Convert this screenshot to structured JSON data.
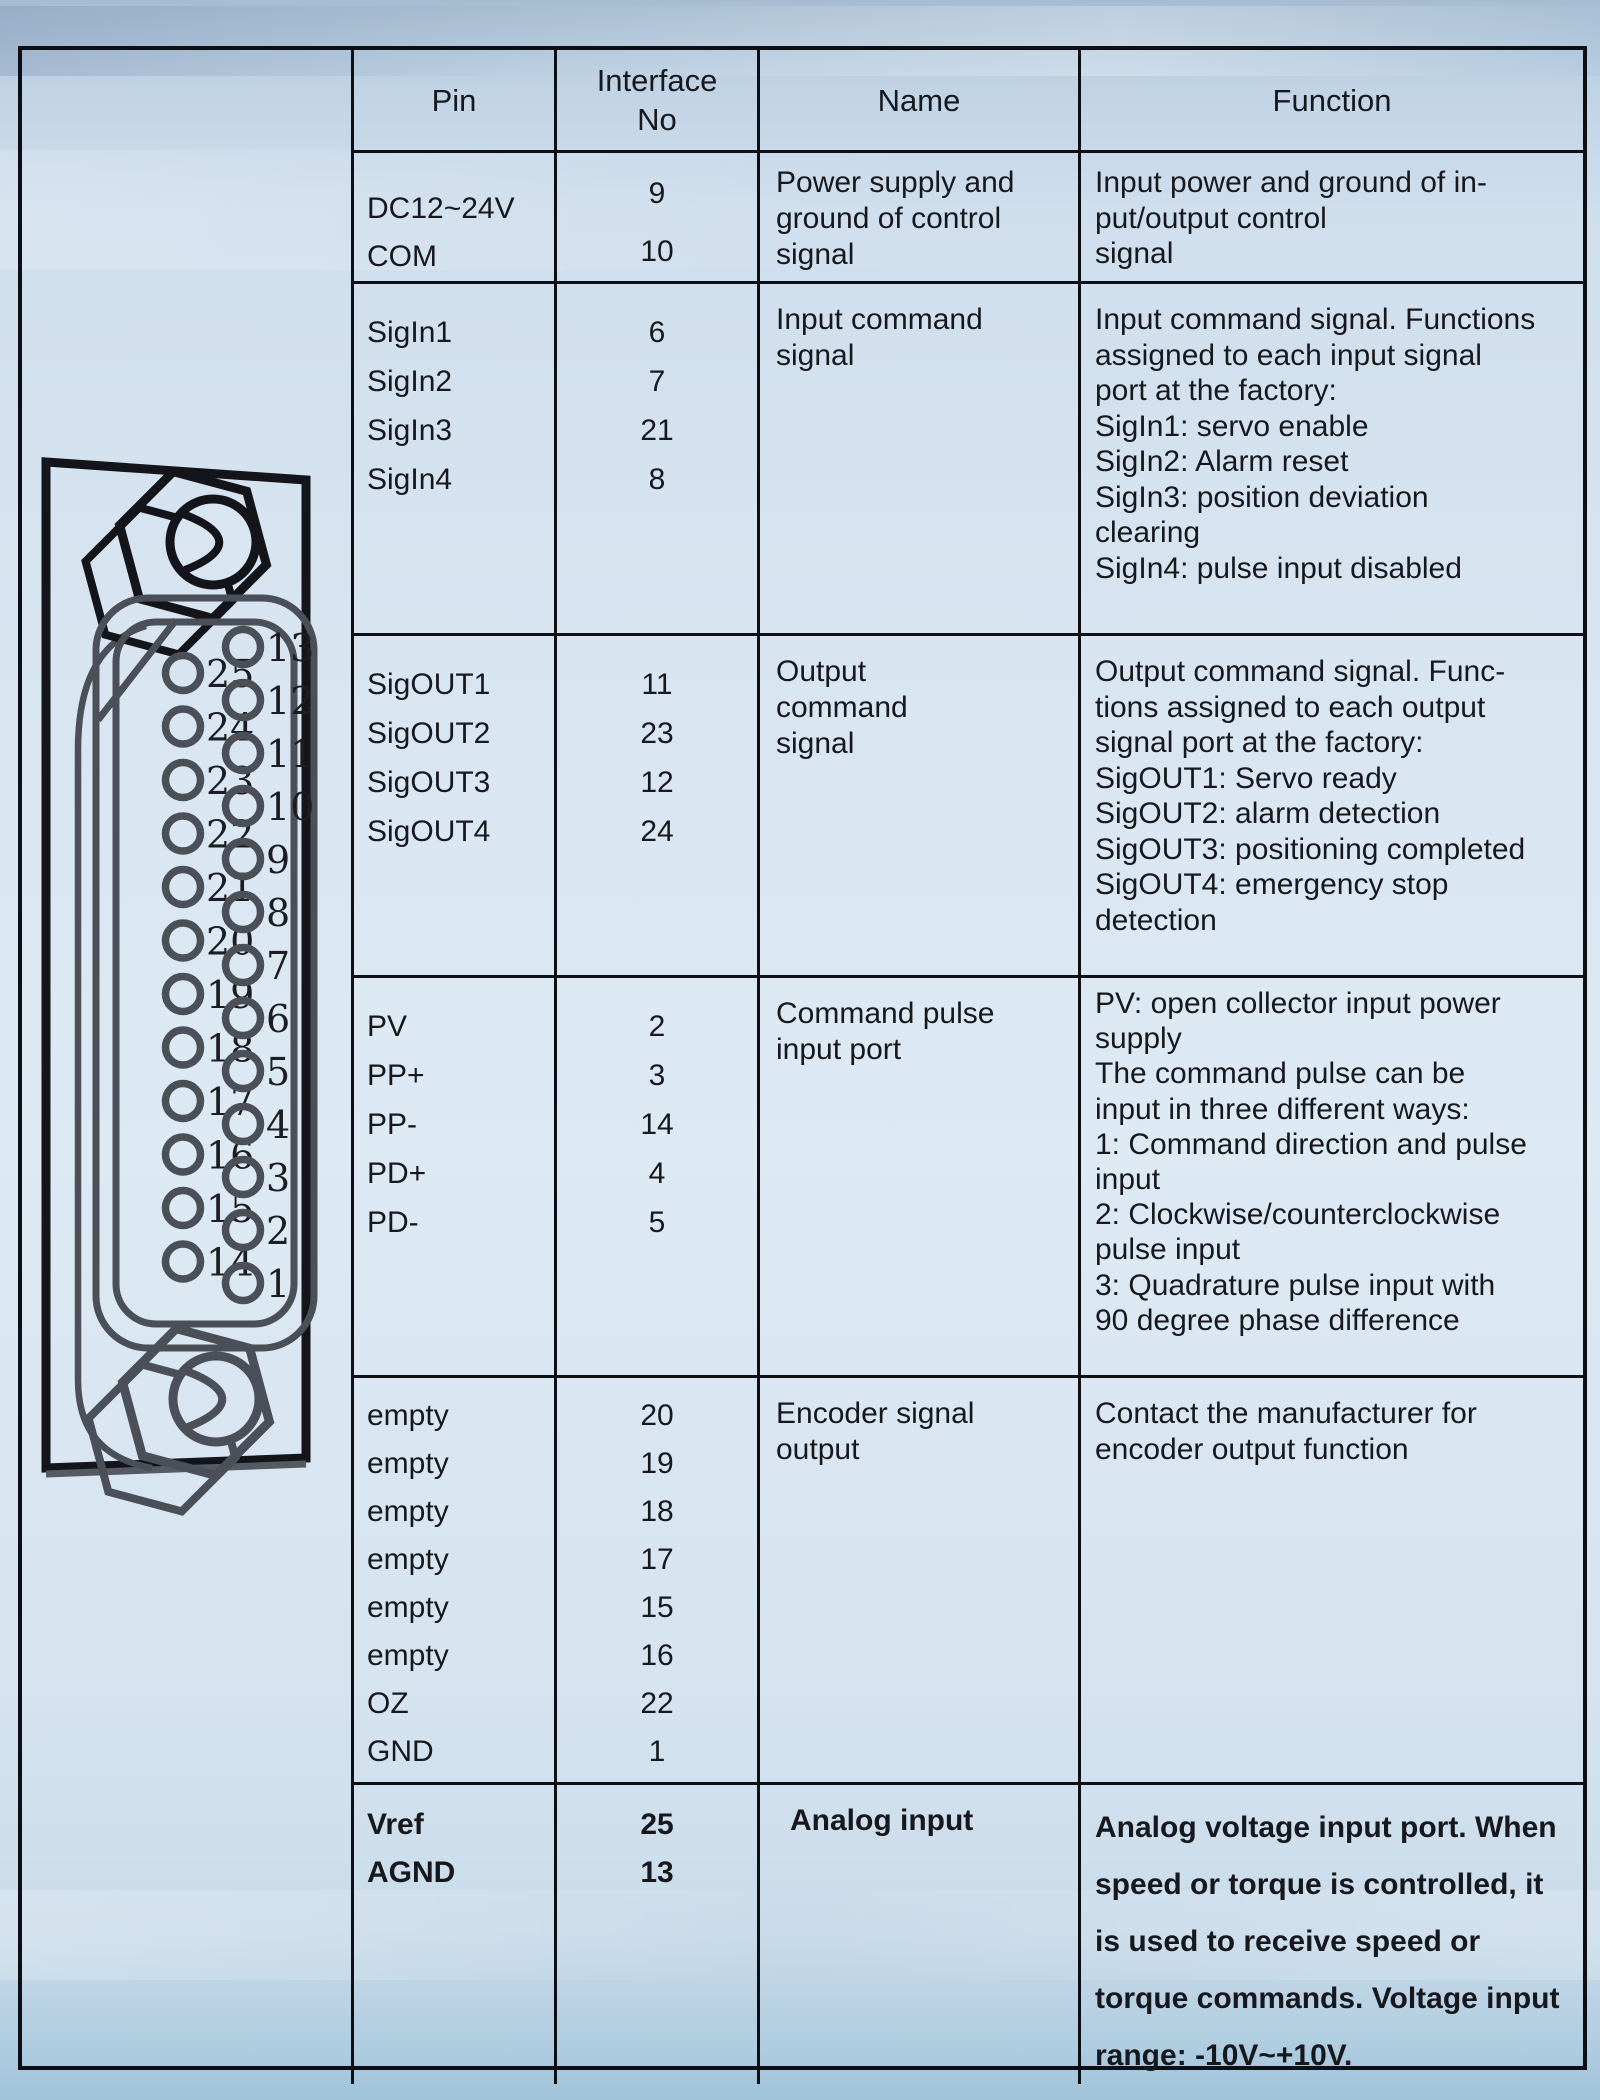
{
  "header": {
    "pin": "Pin",
    "interface_no": "Interface\nNo",
    "name": "Name",
    "function": "Function"
  },
  "rows": [
    {
      "pins": "DC12~24V\nCOM",
      "nos": "9\n10",
      "name": "Power supply and\nground of control\nsignal",
      "func": "Input power and ground of in-\nput/output control\nsignal"
    },
    {
      "pins": "SigIn1\nSigIn2\nSigIn3\nSigIn4",
      "nos": "6\n7\n21\n8",
      "name": "Input command\nsignal",
      "func": "Input command signal. Functions\nassigned to each input signal\nport at the factory:\nSigIn1: servo enable\nSigIn2: Alarm reset\nSigIn3: position deviation\nclearing\nSigIn4: pulse input disabled"
    },
    {
      "pins": "SigOUT1\nSigOUT2\nSigOUT3\nSigOUT4",
      "nos": "11\n23\n12\n24",
      "name": "Output\ncommand\nsignal",
      "func": "Output command signal. Func-\ntions assigned to each output\nsignal port at the factory:\nSigOUT1: Servo ready\nSigOUT2: alarm detection\nSigOUT3: positioning completed\nSigOUT4: emergency stop\ndetection"
    },
    {
      "pins": "PV\nPP+\nPP-\nPD+\nPD-",
      "nos": "2\n3\n14\n4\n5",
      "name": "Command pulse\ninput port",
      "func": "PV: open collector input power\nsupply\nThe command pulse can be\ninput in three different ways:\n 1: Command direction and pulse\ninput\n2: Clockwise/counterclockwise\npulse input\n3: Quadrature pulse input with\n90 degree phase difference"
    },
    {
      "pins": "empty\nempty\nempty\nempty\nempty\nempty\nOZ\nGND",
      "nos": "20\n19\n18\n17\n15\n16\n22\n1",
      "name": "Encoder signal\noutput",
      "func": "Contact the manufacturer for\nencoder output function"
    },
    {
      "pins": "Vref\nAGND",
      "nos": "25\n13",
      "name": "Analog input",
      "func": "Analog voltage input port. When\nspeed or torque is controlled, it\nis used to receive speed or\ntorque commands. Voltage input\nrange: -10V~+10V."
    }
  ],
  "connector": {
    "left_pins": [
      "25",
      "24",
      "23",
      "22",
      "21",
      "20",
      "19",
      "18",
      "17",
      "16",
      "15",
      "14"
    ],
    "right_pins": [
      "13",
      "12",
      "11",
      "10",
      "9",
      "8",
      "7",
      "6",
      "5",
      "4",
      "3",
      "2",
      "1"
    ]
  },
  "colors": {
    "table_line": "#0e0f15",
    "connector_gray": "#4b5058",
    "text": "#17181d"
  }
}
